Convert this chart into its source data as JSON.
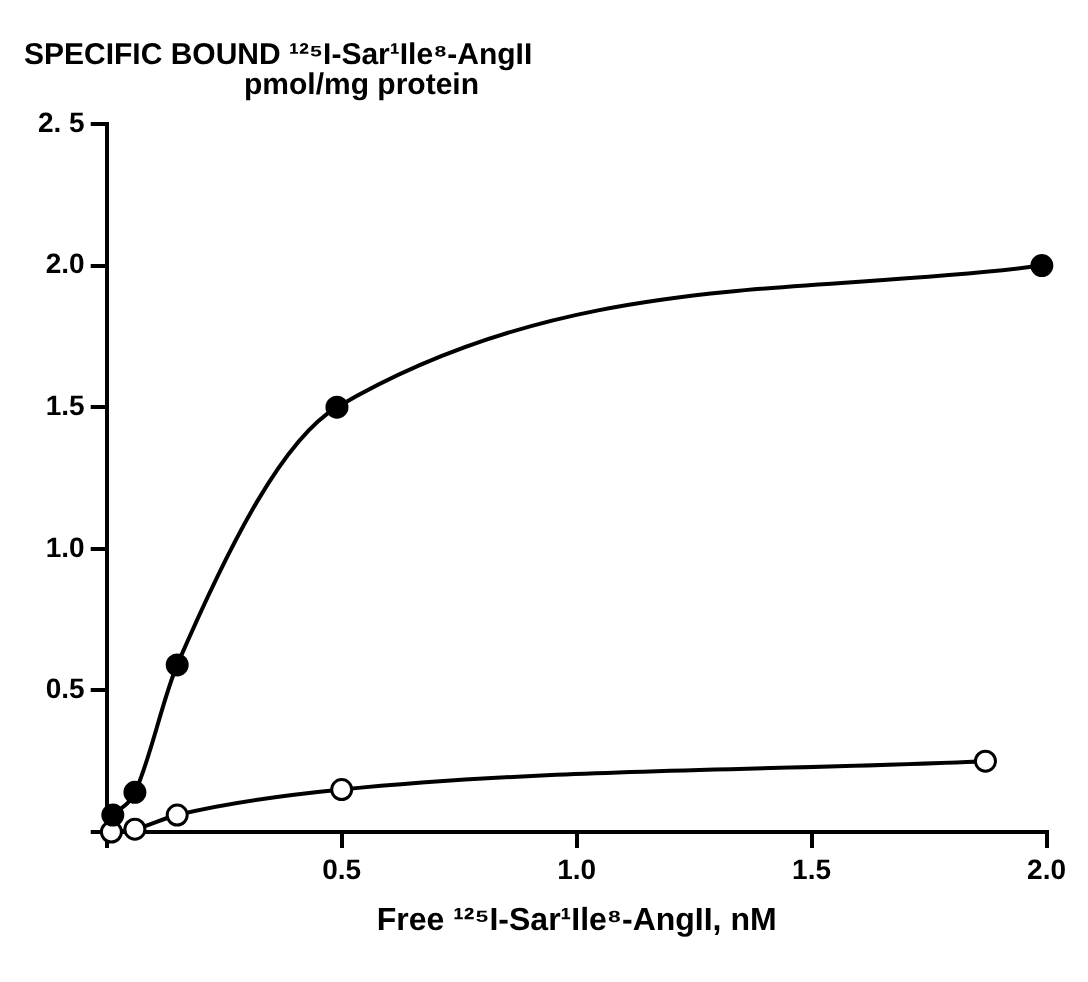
{
  "chart_data": {
    "type": "line",
    "ylabel": "SPECIFIC BOUND ¹²⁵I-Sar¹Ile⁸-AngII\npmol/mg protein",
    "xlabel": "Free ¹²⁵I-Sar¹Ile⁸-AngII, nM",
    "series": [
      {
        "color": "#000000",
        "x": [
          0.013,
          0.06,
          0.15,
          0.49,
          1.99
        ],
        "values": [
          0.06,
          0.14,
          0.59,
          1.5,
          2.0
        ]
      },
      {
        "color": "#000000",
        "x": [
          0.01,
          0.06,
          0.15,
          0.5,
          1.87
        ],
        "values": [
          0.0,
          0.01,
          0.06,
          0.15,
          0.25
        ]
      }
    ],
    "xlim": [
      0,
      2.0
    ],
    "xticks": [
      {
        "value": 0,
        "label": null
      },
      0.5,
      {
        "value": 1,
        "label": "1.0"
      },
      1.5,
      {
        "value": 2,
        "label": "2.0"
      }
    ],
    "ylim": [
      0,
      2.5
    ],
    "yticks": [
      {
        "value": 0,
        "label": null
      },
      0.5,
      {
        "value": 1,
        "label": "1.0"
      },
      1.5,
      {
        "value": 2,
        "label": "2.0"
      },
      {
        "value": 2.5,
        "label": "2. 5"
      }
    ],
    "grid": false,
    "legend": false,
    "marker": "circle",
    "line_style": "solid"
  }
}
